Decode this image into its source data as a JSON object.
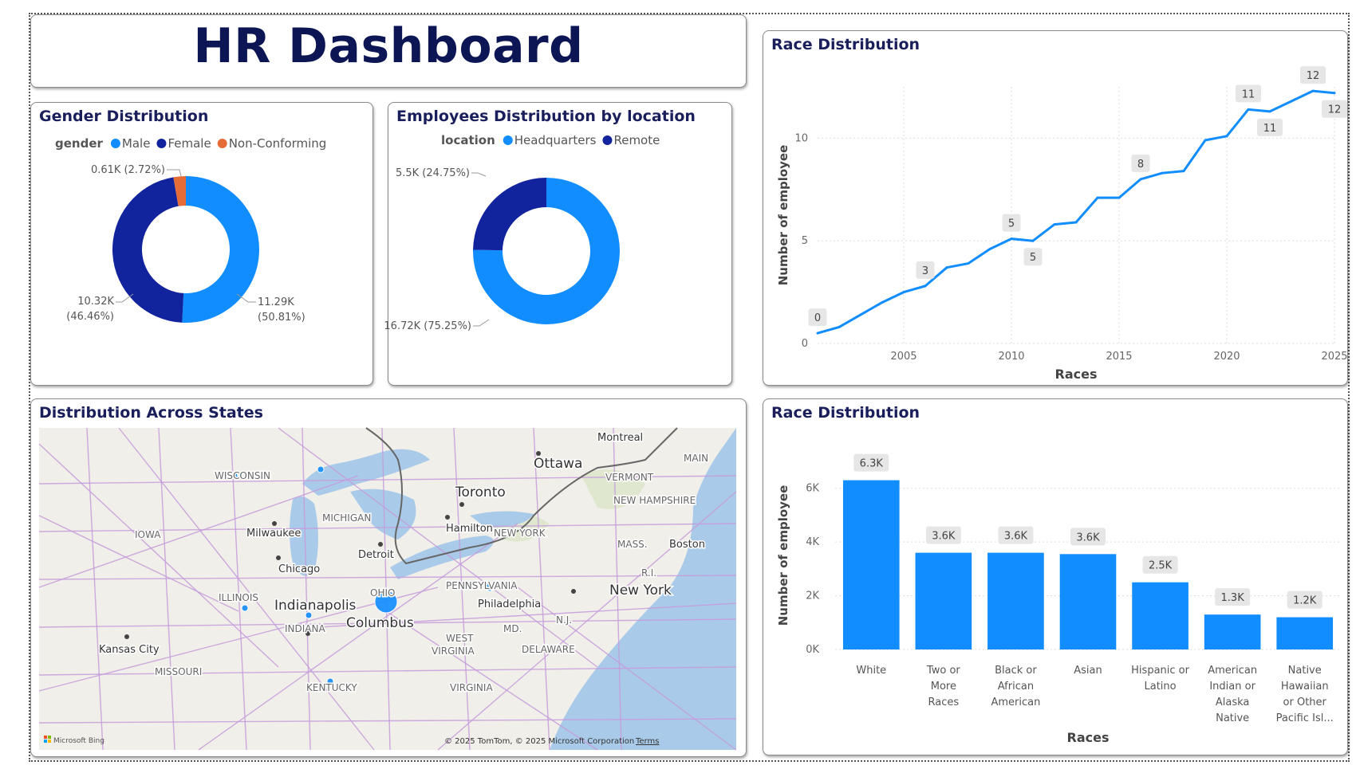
{
  "dashboard": {
    "title": "HR Dashboard"
  },
  "colors": {
    "primary": "#118DFF",
    "dark": "#12239E",
    "accent": "#E66C37",
    "title": "#1a1f5c"
  },
  "gender": {
    "title": "Gender Distribution",
    "legend_title": "gender",
    "slices": [
      {
        "name": "Male",
        "value": 11.29,
        "percent": 50.81,
        "label1": "11.29K",
        "label2": "(50.81%)",
        "color": "#118DFF"
      },
      {
        "name": "Female",
        "value": 10.32,
        "percent": 46.46,
        "label1": "10.32K",
        "label2": "(46.46%)",
        "color": "#12239E"
      },
      {
        "name": "Non-Conforming",
        "value": 0.61,
        "percent": 2.72,
        "label1": "0.61K (2.72%)",
        "label2": "",
        "color": "#E66C37"
      }
    ]
  },
  "location": {
    "title": "Employees Distribution by location",
    "legend_title": "location",
    "slices": [
      {
        "name": "Headquarters",
        "value": 16.72,
        "percent": 75.25,
        "label1": "16.72K (75.25%)",
        "color": "#118DFF"
      },
      {
        "name": "Remote",
        "value": 5.5,
        "percent": 24.75,
        "label1": "5.5K (24.75%)",
        "color": "#12239E"
      }
    ]
  },
  "race_line": {
    "title": "Race Distribution",
    "chart_data": {
      "type": "line",
      "title": "Race Distribution",
      "xlabel": "Races",
      "ylabel": "Number of employee",
      "xlim": [
        2001,
        2025
      ],
      "ylim": [
        0,
        12.5
      ],
      "x_ticks": [
        "2005",
        "2010",
        "2015",
        "2020",
        "2025"
      ],
      "y_ticks": [
        "0",
        "5",
        "10"
      ],
      "x": [
        2001,
        2002,
        2003,
        2004,
        2005,
        2006,
        2007,
        2008,
        2009,
        2010,
        2011,
        2012,
        2013,
        2014,
        2015,
        2016,
        2017,
        2018,
        2019,
        2020,
        2021,
        2022,
        2023,
        2024,
        2025
      ],
      "y": [
        0.5,
        0.8,
        1.4,
        2.0,
        2.5,
        2.8,
        3.7,
        3.9,
        4.6,
        5.1,
        5.0,
        5.8,
        5.9,
        7.1,
        7.1,
        8.0,
        8.3,
        8.4,
        9.9,
        10.1,
        11.4,
        11.3,
        11.8,
        12.3,
        12.2
      ],
      "data_labels": [
        {
          "x": 2001,
          "y": 0.5,
          "text": "0",
          "pos": "above"
        },
        {
          "x": 2006,
          "y": 2.8,
          "text": "3",
          "pos": "above"
        },
        {
          "x": 2010,
          "y": 5.1,
          "text": "5",
          "pos": "above"
        },
        {
          "x": 2011,
          "y": 5.0,
          "text": "5",
          "pos": "below"
        },
        {
          "x": 2016,
          "y": 8.0,
          "text": "8",
          "pos": "above"
        },
        {
          "x": 2021,
          "y": 11.4,
          "text": "11",
          "pos": "above"
        },
        {
          "x": 2022,
          "y": 11.3,
          "text": "11",
          "pos": "below"
        },
        {
          "x": 2024,
          "y": 12.3,
          "text": "12",
          "pos": "above"
        },
        {
          "x": 2025,
          "y": 12.2,
          "text": "12",
          "pos": "below"
        }
      ]
    }
  },
  "race_bar": {
    "title": "Race Distribution",
    "chart_data": {
      "type": "bar",
      "title": "Race Distribution",
      "xlabel": "Races",
      "ylabel": "Number of employee",
      "ylim": [
        0,
        7000
      ],
      "y_ticks": [
        {
          "v": 0,
          "t": "0K"
        },
        {
          "v": 2000,
          "t": "2K"
        },
        {
          "v": 4000,
          "t": "4K"
        },
        {
          "v": 6000,
          "t": "6K"
        }
      ],
      "categories": [
        [
          "White"
        ],
        [
          "Two or",
          "More",
          "Races"
        ],
        [
          "Black or",
          "African",
          "American"
        ],
        [
          "Asian"
        ],
        [
          "Hispanic or",
          "Latino"
        ],
        [
          "American",
          "Indian or",
          "Alaska",
          "Native"
        ],
        [
          "Native",
          "Hawaiian",
          "or Other",
          "Pacific Isl..."
        ]
      ],
      "values": [
        6300,
        3600,
        3600,
        3550,
        2500,
        1300,
        1200
      ],
      "value_labels": [
        "6.3K",
        "3.6K",
        "3.6K",
        "3.6K",
        "2.5K",
        "1.3K",
        "1.2K"
      ]
    }
  },
  "map": {
    "title": "Distribution Across States",
    "labels": [
      {
        "t": "Montreal",
        "cls": "city"
      },
      {
        "t": "Ottawa",
        "cls": "big"
      },
      {
        "t": "Toronto",
        "cls": "big"
      },
      {
        "t": "Hamilton",
        "cls": "city"
      },
      {
        "t": "WISCONSIN",
        "cls": "state"
      },
      {
        "t": "MICHIGAN",
        "cls": "state"
      },
      {
        "t": "VERMONT",
        "cls": "state"
      },
      {
        "t": "NEW HAMPSHIRE",
        "cls": "state"
      },
      {
        "t": "MAIN",
        "cls": "state"
      },
      {
        "t": "IOWA",
        "cls": "state"
      },
      {
        "t": "Milwaukee",
        "cls": "city"
      },
      {
        "t": "Detroit",
        "cls": "city"
      },
      {
        "t": "NEW YORK",
        "cls": "state"
      },
      {
        "t": "MASS.",
        "cls": "state"
      },
      {
        "t": "Boston",
        "cls": "city"
      },
      {
        "t": "R.I.",
        "cls": "state"
      },
      {
        "t": "Chicago",
        "cls": "city"
      },
      {
        "t": "OHIO",
        "cls": "state"
      },
      {
        "t": "PENNSYLVANIA",
        "cls": "state"
      },
      {
        "t": "New York",
        "cls": "big"
      },
      {
        "t": "ILLINOIS",
        "cls": "state"
      },
      {
        "t": "Indianapolis",
        "cls": "big"
      },
      {
        "t": "Philadelphia",
        "cls": "city"
      },
      {
        "t": "INDIANA",
        "cls": "state"
      },
      {
        "t": "Columbus",
        "cls": "big"
      },
      {
        "t": "MD.",
        "cls": "state"
      },
      {
        "t": "N.J.",
        "cls": "state"
      },
      {
        "t": "WEST",
        "cls": "state"
      },
      {
        "t": "VIRGINIA",
        "cls": "state"
      },
      {
        "t": "Kansas City",
        "cls": "city"
      },
      {
        "t": "DELAWARE",
        "cls": "state"
      },
      {
        "t": "MISSOURI",
        "cls": "state"
      },
      {
        "t": "KENTUCKY",
        "cls": "state"
      },
      {
        "t": "VIRGINIA",
        "cls": "state"
      }
    ],
    "copyright": "© 2025 TomTom, © 2025 Microsoft Corporation",
    "terms": "Terms",
    "brand": "Microsoft Bing"
  }
}
